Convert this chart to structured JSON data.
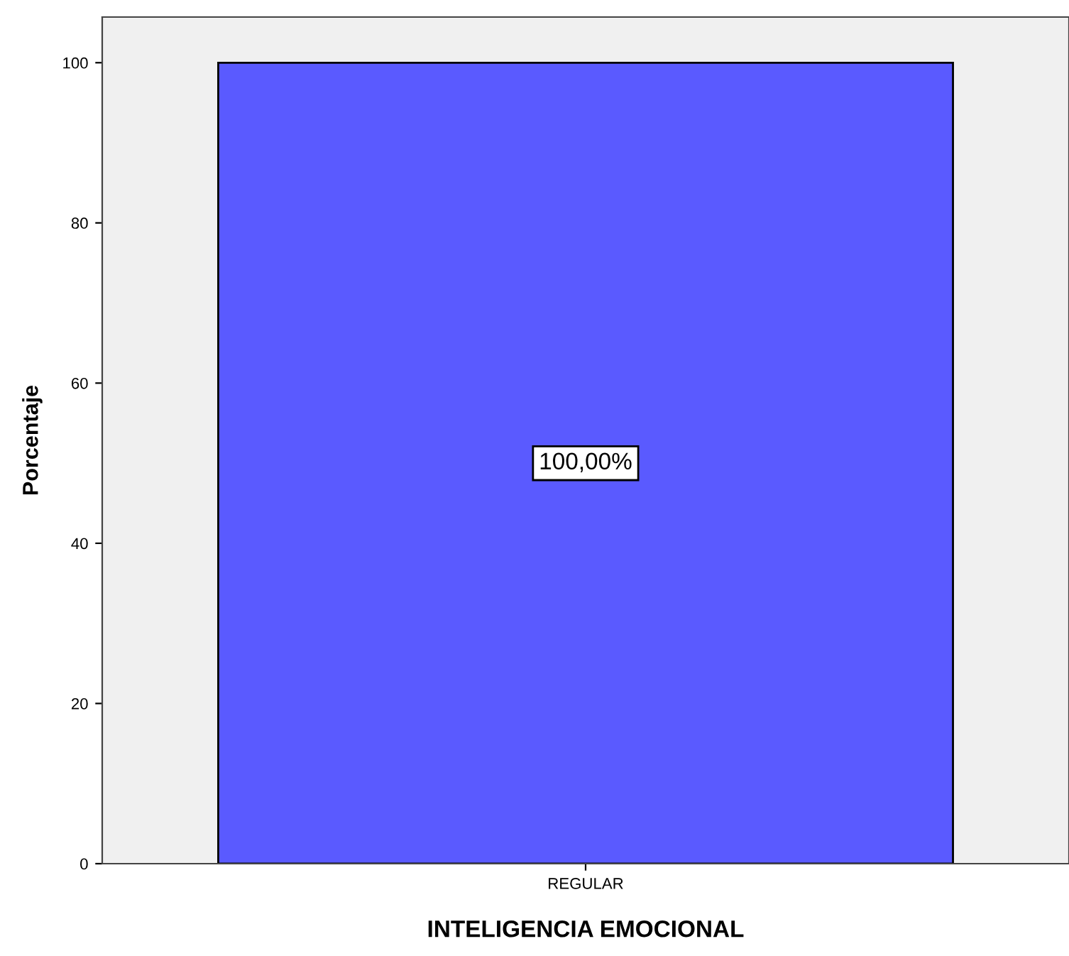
{
  "chart_data": {
    "type": "bar",
    "xlabel": "INTELIGENCIA EMOCIONAL",
    "ylabel": "Porcentaje",
    "categories": [
      "REGULAR"
    ],
    "values": [
      100
    ],
    "value_labels": [
      "100,00%"
    ],
    "color": "#5a5aff",
    "ylim": [
      0,
      105.7
    ],
    "yticks": [
      0,
      20,
      40,
      60,
      80,
      100
    ],
    "grid": false,
    "legend": false
  }
}
